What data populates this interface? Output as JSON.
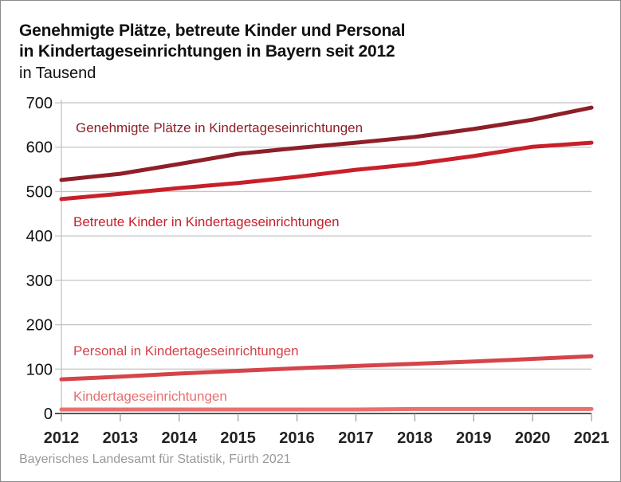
{
  "chart_data": {
    "type": "line",
    "title": "Genehmigte Plätze, betreute Kinder und Personal in Kindertageseinrichtungen in Bayern seit 2012",
    "title_lines": [
      "Genehmigte Plätze, betreute Kinder und Personal",
      "in Kindertageseinrichtungen in Bayern seit 2012"
    ],
    "subtitle": "in Tausend",
    "source": "Bayerisches Landesamt für Statistik, Fürth 2021",
    "xlabel": "",
    "ylabel": "",
    "x": [
      "2012",
      "2013",
      "2014",
      "2015",
      "2016",
      "2017",
      "2018",
      "2019",
      "2020",
      "2021"
    ],
    "ylim": [
      0,
      700
    ],
    "yticks": [
      "0",
      "100",
      "200",
      "300",
      "400",
      "500",
      "600",
      "700"
    ],
    "grid": true,
    "legend": "inline labels",
    "series": [
      {
        "name": "Genehmigte Plätze in Kindertageseinrichtungen",
        "color": "#8e1f28",
        "values": [
          526,
          540,
          562,
          585,
          598,
          610,
          623,
          641,
          662,
          689
        ]
      },
      {
        "name": "Betreute Kinder in Kindertageseinrichtungen",
        "color": "#c8202a",
        "values": [
          483,
          495,
          508,
          519,
          533,
          549,
          562,
          580,
          601,
          610
        ]
      },
      {
        "name": "Personal in Kindertageseinrichtungen",
        "color": "#d4444a",
        "values": [
          77,
          83,
          90,
          96,
          102,
          107,
          112,
          117,
          123,
          129
        ]
      },
      {
        "name": "Kindertageseinrichtungen",
        "color": "#e8706f",
        "values": [
          9,
          9,
          9,
          9,
          9,
          9,
          10,
          10,
          10,
          10
        ]
      }
    ]
  }
}
